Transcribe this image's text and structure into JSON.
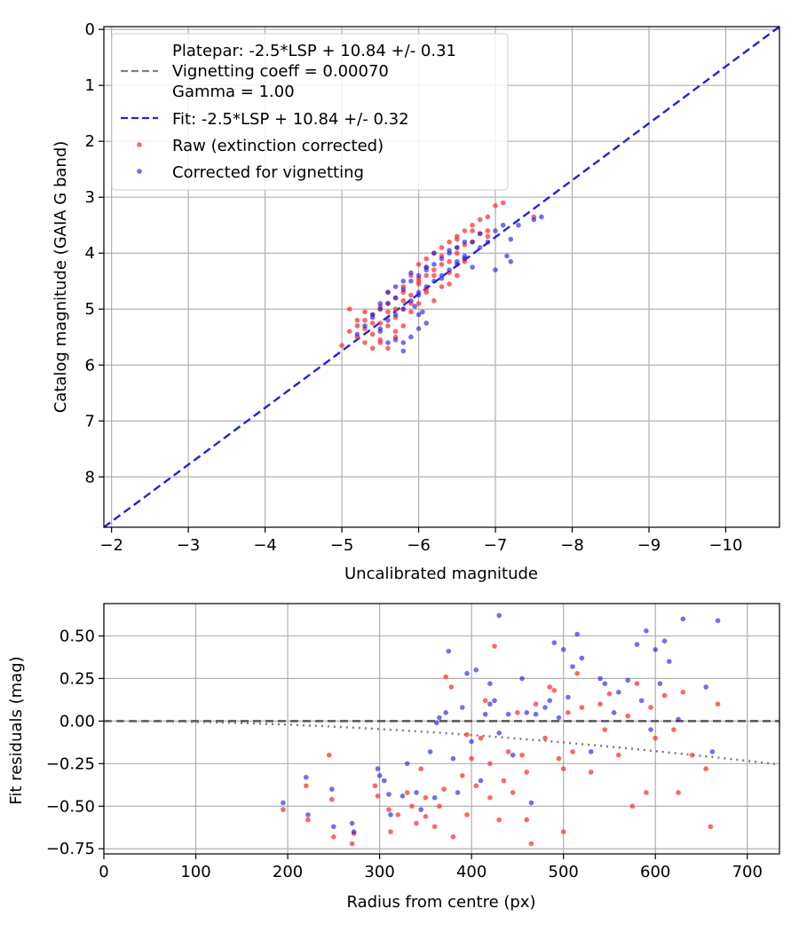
{
  "chart_data": [
    {
      "type": "scatter",
      "xlabel": "Uncalibrated magnitude",
      "ylabel": "Catalog magnitude (GAIA G band)",
      "xlim": [
        -1.9,
        -10.7
      ],
      "ylim": [
        8.9,
        -0.05
      ],
      "x_inverted": true,
      "y_inverted": true,
      "x_ticks": [
        -2,
        -3,
        -4,
        -5,
        -6,
        -7,
        -8,
        -9,
        -10
      ],
      "x_tick_labels": [
        "−2",
        "−3",
        "−4",
        "−5",
        "−6",
        "−7",
        "−8",
        "−9",
        "−10"
      ],
      "y_ticks": [
        0,
        1,
        2,
        3,
        4,
        5,
        6,
        7,
        8
      ],
      "y_tick_labels": [
        "0",
        "1",
        "2",
        "3",
        "4",
        "5",
        "6",
        "7",
        "8"
      ],
      "grid": true,
      "legend_position": "top-left",
      "legend": {
        "platepar_lines": [
          "Platepar: -2.5*LSP + 10.84 +/- 0.31",
          "Vignetting coeff = 0.00070",
          "Gamma = 1.00"
        ],
        "fit_label": "Fit: -2.5*LSP + 10.84 +/- 0.32",
        "raw_label": "Raw (extinction corrected)",
        "corrected_label": "Corrected for vignetting"
      },
      "lines": [
        {
          "name": "Fit: -2.5*LSP + 10.84 +/- 0.32",
          "color": "#2222dd",
          "style": "dashed",
          "x": [
            -1.9,
            -10.7
          ],
          "y": [
            8.9,
            -0.05
          ]
        }
      ],
      "series": [
        {
          "name": "Raw (extinction corrected)",
          "color": "#ff3333",
          "x": [
            -5.0,
            -5.1,
            -5.2,
            -5.2,
            -5.3,
            -5.3,
            -5.4,
            -5.4,
            -5.5,
            -5.5,
            -5.5,
            -5.6,
            -5.6,
            -5.6,
            -5.7,
            -5.7,
            -5.7,
            -5.8,
            -5.8,
            -5.8,
            -5.9,
            -5.9,
            -5.9,
            -6.0,
            -6.0,
            -6.0,
            -6.1,
            -6.1,
            -6.1,
            -6.2,
            -6.2,
            -6.3,
            -6.3,
            -6.3,
            -6.4,
            -6.4,
            -6.5,
            -6.5,
            -6.5,
            -6.6,
            -6.6,
            -6.6,
            -6.7,
            -6.7,
            -6.8,
            -6.8,
            -6.9,
            -5.3,
            -5.4,
            -5.5,
            -5.6,
            -5.7,
            -5.9,
            -6.0,
            -6.1,
            -6.2,
            -6.4,
            -6.5,
            -5.2,
            -5.4,
            -5.5,
            -5.7,
            -5.8,
            -6.0,
            -6.2,
            -6.3,
            -6.5,
            -6.7,
            -7.0,
            -7.1,
            -7.5,
            -6.9,
            -5.1,
            -5.3,
            -5.6,
            -5.8,
            -6.1,
            -6.4,
            -6.6,
            -6.9
          ],
          "y": [
            5.65,
            5.0,
            5.5,
            5.2,
            5.6,
            5.35,
            5.1,
            5.45,
            5.0,
            5.25,
            5.55,
            4.9,
            5.3,
            5.7,
            4.8,
            5.15,
            5.4,
            4.6,
            5.0,
            5.3,
            4.4,
            4.75,
            5.05,
            4.2,
            4.55,
            4.9,
            4.1,
            4.4,
            4.7,
            4.0,
            4.4,
            3.9,
            4.2,
            4.6,
            3.8,
            4.15,
            3.7,
            4.0,
            4.4,
            3.6,
            3.85,
            4.15,
            3.5,
            3.8,
            3.4,
            3.65,
            3.35,
            5.05,
            5.7,
            5.6,
            4.7,
            5.5,
            4.9,
            4.5,
            4.25,
            4.85,
            4.55,
            3.75,
            5.3,
            5.25,
            4.95,
            5.0,
            4.7,
            4.45,
            4.3,
            4.05,
            3.9,
            3.6,
            3.15,
            3.1,
            3.35,
            3.6,
            5.4,
            5.2,
            5.05,
            4.85,
            4.65,
            4.35,
            4.1,
            3.7
          ]
        },
        {
          "name": "Corrected for vignetting",
          "color": "#2222ee",
          "x": [
            -5.2,
            -5.3,
            -5.4,
            -5.5,
            -5.5,
            -5.6,
            -5.6,
            -5.7,
            -5.7,
            -5.8,
            -5.8,
            -5.9,
            -5.9,
            -6.0,
            -6.0,
            -6.1,
            -6.1,
            -6.2,
            -6.2,
            -6.3,
            -6.3,
            -6.4,
            -6.4,
            -6.5,
            -6.5,
            -6.6,
            -6.6,
            -6.7,
            -6.8,
            -6.9,
            -7.0,
            -7.1,
            -7.2,
            -7.3,
            -7.5,
            -7.6,
            -5.6,
            -5.7,
            -5.8,
            -5.9,
            -6.0,
            -6.1,
            -5.5,
            -5.6,
            -5.7,
            -5.8,
            -5.9,
            -6.0,
            -6.1,
            -6.2,
            -6.4,
            -6.6,
            -6.8,
            -7.0,
            -7.2,
            -5.4,
            -5.5,
            -5.8,
            -6.0,
            -6.3,
            -6.5,
            -6.7,
            -7.15,
            -6.05,
            -5.95
          ],
          "y": [
            5.45,
            5.3,
            5.1,
            5.0,
            5.35,
            4.9,
            5.2,
            4.8,
            5.1,
            4.65,
            5.0,
            4.5,
            4.85,
            4.4,
            4.7,
            4.3,
            4.6,
            4.2,
            4.5,
            4.1,
            4.4,
            4.0,
            4.3,
            3.9,
            4.2,
            3.8,
            4.1,
            3.8,
            3.65,
            3.8,
            3.6,
            3.5,
            3.75,
            3.5,
            3.4,
            3.35,
            5.6,
            5.55,
            5.6,
            5.5,
            5.35,
            5.25,
            4.9,
            4.7,
            4.6,
            4.5,
            4.35,
            4.75,
            4.25,
            4.0,
            3.95,
            4.05,
            3.9,
            4.3,
            4.15,
            5.15,
            5.4,
            5.75,
            5.1,
            4.45,
            4.15,
            4.25,
            4.05,
            5.05,
            4.95
          ]
        }
      ]
    },
    {
      "type": "scatter",
      "xlabel": "Radius from centre (px)",
      "ylabel": "Fit residuals (mag)",
      "xlim": [
        0,
        735
      ],
      "ylim": [
        -0.78,
        0.69
      ],
      "x_ticks": [
        0,
        100,
        200,
        300,
        400,
        500,
        600,
        700
      ],
      "x_tick_labels": [
        "0",
        "100",
        "200",
        "300",
        "400",
        "500",
        "600",
        "700"
      ],
      "y_ticks": [
        0.5,
        0.25,
        0.0,
        -0.25,
        -0.5,
        -0.75
      ],
      "y_tick_labels": [
        "0.50",
        "0.25",
        "0.00",
        "−0.25",
        "−0.50",
        "−0.75"
      ],
      "grid": true,
      "lines": [
        {
          "name": "zero",
          "color": "#555555",
          "style": "dashed",
          "x": [
            0,
            735
          ],
          "y": [
            0,
            0
          ]
        },
        {
          "name": "vignetting",
          "color": "#777777",
          "style": "dotted",
          "coeff": 0.0007,
          "x_range": [
            0,
            735
          ]
        }
      ],
      "series": [
        {
          "name": "Raw (extinction corrected)",
          "color": "#ff3333",
          "x": [
            195,
            220,
            222,
            245,
            248,
            250,
            270,
            272,
            295,
            298,
            310,
            312,
            320,
            330,
            335,
            340,
            345,
            350,
            360,
            365,
            370,
            372,
            378,
            380,
            390,
            395,
            400,
            405,
            410,
            415,
            420,
            425,
            430,
            435,
            440,
            445,
            450,
            455,
            460,
            465,
            470,
            480,
            485,
            490,
            495,
            500,
            505,
            510,
            515,
            520,
            530,
            540,
            545,
            550,
            560,
            570,
            575,
            580,
            590,
            595,
            600,
            610,
            620,
            625,
            630,
            640,
            655,
            660,
            668,
            350,
            395,
            420,
            460,
            500
          ],
          "y": [
            -0.52,
            -0.38,
            -0.58,
            -0.2,
            -0.46,
            -0.68,
            -0.72,
            -0.66,
            -0.38,
            -0.44,
            -0.52,
            -0.65,
            -0.55,
            -0.42,
            -0.5,
            -0.6,
            -0.28,
            -0.45,
            -0.62,
            -0.5,
            -0.4,
            0.26,
            0.2,
            -0.68,
            -0.32,
            -0.08,
            -0.22,
            -0.38,
            -0.1,
            0.12,
            -0.25,
            0.44,
            -0.58,
            -0.35,
            -0.18,
            -0.42,
            0.05,
            -0.2,
            -0.3,
            -0.72,
            0.1,
            -0.1,
            0.2,
            0.18,
            -0.22,
            -0.65,
            0.05,
            -0.18,
            0.28,
            0.08,
            -0.3,
            0.1,
            -0.05,
            0.16,
            -0.2,
            0.03,
            -0.5,
            0.22,
            -0.42,
            0.08,
            -0.1,
            0.15,
            -0.05,
            -0.42,
            0.17,
            -0.2,
            -0.28,
            -0.62,
            0.1,
            -0.56,
            -0.55,
            -0.45,
            -0.58,
            -0.28
          ]
        },
        {
          "name": "Corrected for vignetting",
          "color": "#2222ee",
          "x": [
            195,
            220,
            222,
            248,
            250,
            270,
            272,
            298,
            300,
            310,
            312,
            325,
            330,
            340,
            345,
            355,
            360,
            365,
            372,
            375,
            380,
            385,
            390,
            395,
            400,
            405,
            410,
            415,
            420,
            425,
            430,
            440,
            445,
            455,
            460,
            465,
            470,
            480,
            485,
            490,
            495,
            500,
            505,
            510,
            515,
            520,
            530,
            540,
            545,
            555,
            560,
            570,
            580,
            585,
            590,
            595,
            600,
            605,
            610,
            615,
            625,
            630,
            655,
            662,
            668,
            430,
            420,
            362,
            305
          ],
          "y": [
            -0.48,
            -0.33,
            -0.55,
            -0.4,
            -0.62,
            -0.6,
            -0.65,
            -0.28,
            -0.32,
            -0.43,
            -0.55,
            -0.44,
            -0.25,
            -0.42,
            -0.52,
            -0.18,
            -0.45,
            0.02,
            0.05,
            0.41,
            -0.22,
            -0.42,
            0.08,
            0.28,
            -0.12,
            0.3,
            -0.35,
            0.04,
            0.22,
            0.12,
            0.62,
            0.04,
            -0.2,
            0.25,
            0.05,
            -0.48,
            0.04,
            0.08,
            0.12,
            0.46,
            0.02,
            0.42,
            0.14,
            0.32,
            0.51,
            0.37,
            -0.18,
            0.25,
            0.22,
            0.05,
            0.17,
            0.24,
            0.45,
            0.12,
            0.53,
            -0.05,
            0.42,
            0.22,
            0.47,
            0.35,
            0.01,
            0.6,
            0.2,
            -0.18,
            0.59,
            -0.07,
            0.1,
            -0.01,
            -0.35
          ]
        }
      ]
    }
  ]
}
